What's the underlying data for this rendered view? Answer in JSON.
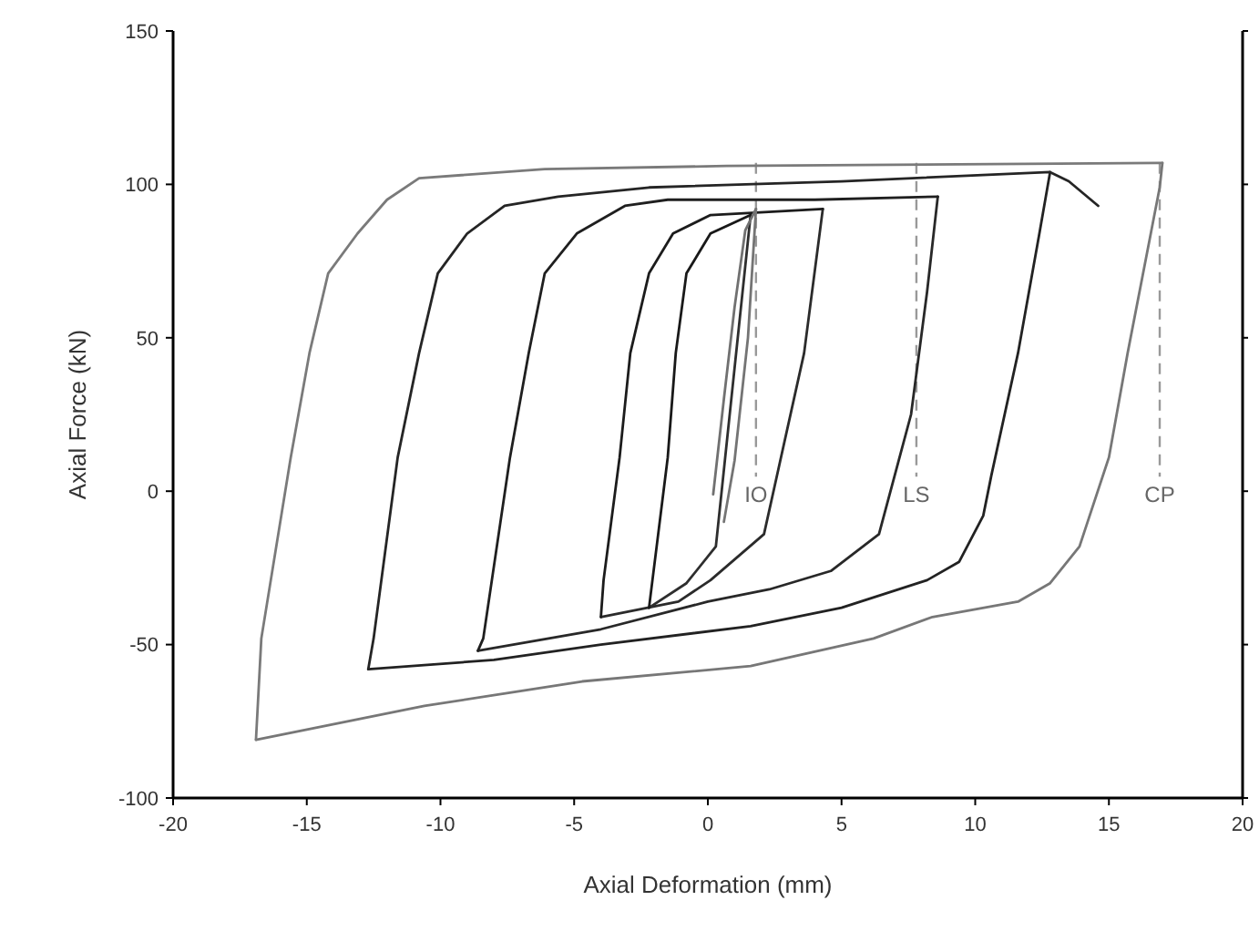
{
  "chart_data": {
    "type": "line",
    "xlabel": "Axial Deformation (mm)",
    "ylabel": "Axial Force (kN)",
    "xlim": [
      -20,
      20
    ],
    "xticks": [
      -20,
      -15,
      -10,
      -5,
      0,
      5,
      10,
      15,
      20
    ],
    "ylim": [
      -100,
      150
    ],
    "yticks": [
      -100,
      -50,
      0,
      50,
      100,
      150
    ],
    "grid": false,
    "marker": "none",
    "line_style": "solid",
    "series": [
      {
        "color": "#777777",
        "x": [
          17.0,
          16.9,
          15.7,
          15.0,
          13.9,
          12.8,
          11.6,
          8.4,
          6.2,
          1.6,
          -4.7,
          -10.6,
          -16.9
        ],
        "values": [
          107,
          99,
          45,
          11,
          -18,
          -30,
          -36,
          -41,
          -48,
          -57,
          -62,
          -70,
          -81
        ]
      },
      {
        "color": "#7a7a7a",
        "x": [
          -16.9,
          -16.7,
          -15.6,
          -14.9,
          -14.2,
          -13.1,
          -12.0,
          -10.8,
          -6.1,
          0.7,
          17.0
        ],
        "values": [
          -81,
          -48,
          11,
          45,
          71,
          84,
          95,
          102,
          105,
          106,
          107
        ]
      },
      {
        "color": "#222222",
        "x": [
          12.8,
          12.4,
          11.6,
          10.6,
          10.3,
          9.4,
          8.2,
          5.0,
          1.6,
          -4,
          -8,
          -12.7
        ],
        "values": [
          104,
          84,
          45,
          5,
          -8,
          -23,
          -29,
          -38,
          -44,
          -50,
          -55,
          -58
        ]
      },
      {
        "color": "#252525",
        "x": [
          -12.7,
          -12.5,
          -11.6,
          -10.8,
          -10.1,
          -9.0,
          -7.6,
          -5.6,
          -2.2,
          5,
          12.8,
          13.5,
          14.6
        ],
        "values": [
          -58,
          -48,
          11,
          45,
          71,
          84,
          93,
          96,
          99,
          101,
          104,
          101,
          93
        ]
      },
      {
        "color": "#282828",
        "x": [
          8.6,
          8.2,
          7.6,
          6.4,
          4.6,
          2.3,
          0,
          -4,
          -8.6
        ],
        "values": [
          96,
          65,
          25,
          -14,
          -26,
          -32,
          -36,
          -45,
          -52
        ]
      },
      {
        "color": "#1f1f1f",
        "x": [
          -8.6,
          -8.4,
          -7.4,
          -6.7,
          -6.1,
          -4.9,
          -3.1,
          -1.5,
          4,
          8.6
        ],
        "values": [
          -52,
          -48,
          11,
          45,
          71,
          84,
          93,
          95,
          95,
          96
        ]
      },
      {
        "color": "#2b2b2b",
        "x": [
          4.3,
          3.6,
          2.1,
          0.1,
          -1.1,
          -4.0
        ],
        "values": [
          92,
          45,
          -14,
          -29,
          -36,
          -41
        ]
      },
      {
        "color": "#1c1c1c",
        "x": [
          -4.0,
          -3.9,
          -3.3,
          -2.9,
          -2.2,
          -1.3,
          0.1,
          4.3
        ],
        "values": [
          -41,
          -29,
          11,
          45,
          71,
          84,
          90,
          92
        ]
      },
      {
        "color": "#2e2e2e",
        "x": [
          1.6,
          0.3,
          -0.8,
          -2.2
        ],
        "values": [
          90,
          -18,
          -30,
          -38
        ]
      },
      {
        "color": "#191919",
        "x": [
          -2.2,
          -1.5,
          -1.2,
          -0.8,
          0.1,
          1.6
        ],
        "values": [
          -38,
          11,
          45,
          71,
          84,
          90
        ]
      },
      {
        "color": "#707070",
        "x": [
          0.2,
          0.6,
          1.0,
          1.4,
          1.8
        ],
        "values": [
          -1,
          30,
          60,
          85,
          92
        ]
      },
      {
        "color": "#747474",
        "x": [
          1.8,
          1.5,
          1.0,
          0.6
        ],
        "values": [
          92,
          50,
          10,
          -10
        ]
      }
    ],
    "ref_lines": [
      {
        "axis": "x",
        "value": 1.8,
        "label": "IO",
        "line_style": "dashed",
        "color": "#999999"
      },
      {
        "axis": "x",
        "value": 7.8,
        "label": "LS",
        "line_style": "dashed",
        "color": "#999999"
      },
      {
        "axis": "x",
        "value": 16.9,
        "label": "CP",
        "line_style": "dashed",
        "color": "#999999"
      }
    ]
  }
}
